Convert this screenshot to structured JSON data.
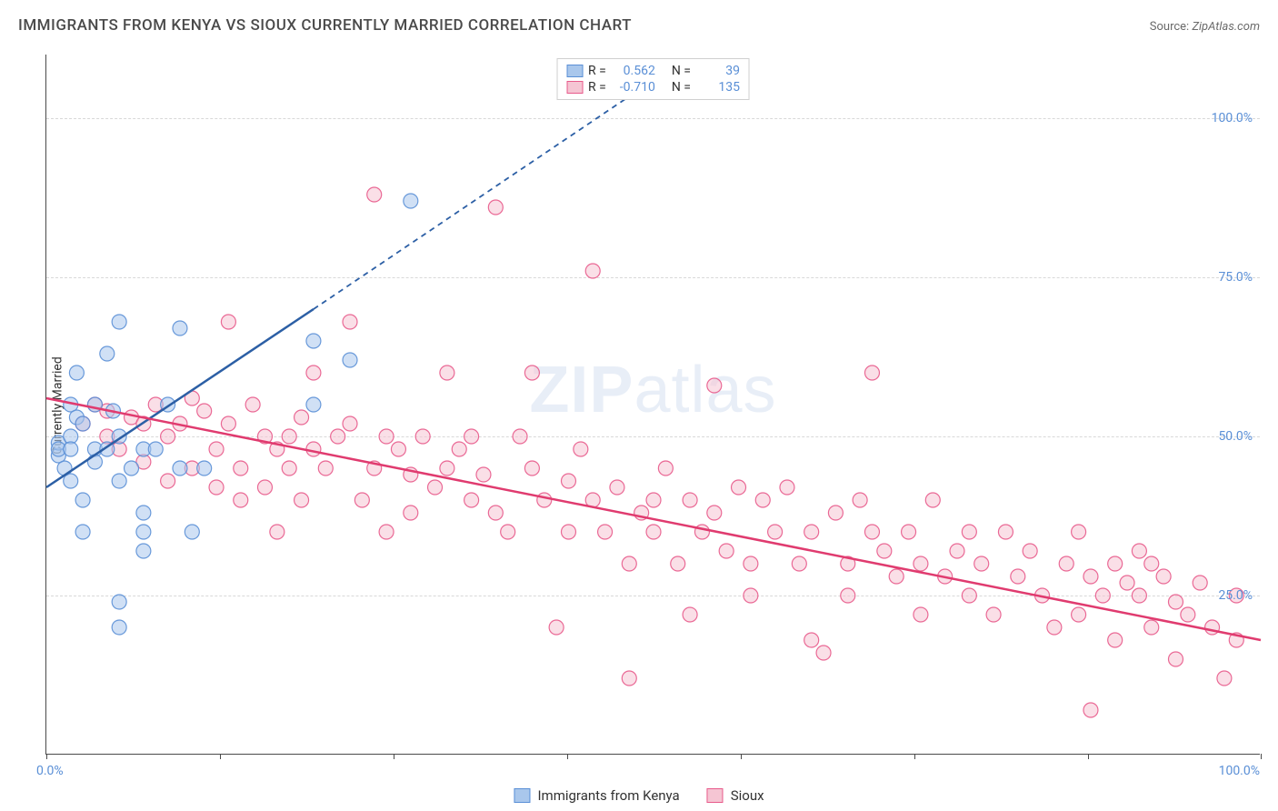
{
  "title": "IMMIGRANTS FROM KENYA VS SIOUX CURRENTLY MARRIED CORRELATION CHART",
  "source_label": "Source:",
  "source_value": "ZipAtlas.com",
  "y_label": "Currently Married",
  "watermark_bold": "ZIP",
  "watermark_light": "atlas",
  "chart": {
    "type": "scatter",
    "background_color": "#ffffff",
    "grid_color": "#d8d8d8",
    "axis_color": "#4a4a4a",
    "tick_label_color": "#5a8fd6",
    "tick_label_fontsize": 14,
    "title_color": "#4a4a4a",
    "title_fontsize": 17,
    "xlim": [
      0,
      100
    ],
    "ylim": [
      0,
      110
    ],
    "x_ticks": [
      0,
      14.3,
      28.6,
      42.9,
      57.2,
      71.5,
      85.8,
      100
    ],
    "x_tick_labels": {
      "0": "0.0%",
      "100": "100.0%"
    },
    "y_gridlines": [
      25,
      50,
      75,
      100
    ],
    "y_tick_labels": {
      "25": "25.0%",
      "50": "50.0%",
      "75": "75.0%",
      "100": "100.0%"
    },
    "marker_radius": 8,
    "marker_opacity": 0.55,
    "series": [
      {
        "name": "Immigrants from Kenya",
        "fill_color": "#a9c7ec",
        "stroke_color": "#5a8fd6",
        "trend_color": "#2c5fa5",
        "trend_width": 2.5,
        "r_value": "0.562",
        "n_value": "39",
        "trend_solid": {
          "x1": 0,
          "y1": 42,
          "x2": 22,
          "y2": 70
        },
        "trend_dashed": {
          "x1": 22,
          "y1": 70,
          "x2": 50,
          "y2": 106
        },
        "points": [
          [
            1,
            47
          ],
          [
            1,
            49
          ],
          [
            1,
            48
          ],
          [
            1.5,
            45
          ],
          [
            2,
            50
          ],
          [
            2,
            48
          ],
          [
            2,
            55
          ],
          [
            2.5,
            60
          ],
          [
            2.5,
            53
          ],
          [
            3,
            52
          ],
          [
            2,
            43
          ],
          [
            3,
            40
          ],
          [
            3,
            35
          ],
          [
            4,
            48
          ],
          [
            4,
            55
          ],
          [
            4,
            46
          ],
          [
            5,
            63
          ],
          [
            5,
            48
          ],
          [
            5.5,
            54
          ],
          [
            6,
            68
          ],
          [
            6,
            50
          ],
          [
            6,
            43
          ],
          [
            7,
            45
          ],
          [
            8,
            48
          ],
          [
            8,
            38
          ],
          [
            8,
            35
          ],
          [
            8,
            32
          ],
          [
            6,
            24
          ],
          [
            6,
            20
          ],
          [
            9,
            48
          ],
          [
            10,
            55
          ],
          [
            11,
            45
          ],
          [
            11,
            67
          ],
          [
            12,
            35
          ],
          [
            13,
            45
          ],
          [
            22,
            55
          ],
          [
            22,
            65
          ],
          [
            25,
            62
          ],
          [
            30,
            87
          ]
        ]
      },
      {
        "name": "Sioux",
        "fill_color": "#f5c5d3",
        "stroke_color": "#e85a8b",
        "trend_color": "#e03b6f",
        "trend_width": 2.5,
        "r_value": "-0.710",
        "n_value": "135",
        "trend_solid": {
          "x1": 0,
          "y1": 56,
          "x2": 100,
          "y2": 18
        },
        "trend_dashed": null,
        "points": [
          [
            3,
            52
          ],
          [
            4,
            55
          ],
          [
            5,
            50
          ],
          [
            5,
            54
          ],
          [
            6,
            48
          ],
          [
            7,
            53
          ],
          [
            8,
            46
          ],
          [
            8,
            52
          ],
          [
            9,
            55
          ],
          [
            10,
            50
          ],
          [
            10,
            43
          ],
          [
            11,
            52
          ],
          [
            12,
            56
          ],
          [
            12,
            45
          ],
          [
            13,
            54
          ],
          [
            14,
            48
          ],
          [
            14,
            42
          ],
          [
            15,
            52
          ],
          [
            15,
            68
          ],
          [
            16,
            45
          ],
          [
            16,
            40
          ],
          [
            17,
            55
          ],
          [
            18,
            50
          ],
          [
            18,
            42
          ],
          [
            19,
            48
          ],
          [
            19,
            35
          ],
          [
            20,
            50
          ],
          [
            20,
            45
          ],
          [
            21,
            53
          ],
          [
            21,
            40
          ],
          [
            22,
            48
          ],
          [
            22,
            60
          ],
          [
            23,
            45
          ],
          [
            24,
            50
          ],
          [
            25,
            52
          ],
          [
            25,
            68
          ],
          [
            26,
            40
          ],
          [
            27,
            45
          ],
          [
            27,
            88
          ],
          [
            28,
            50
          ],
          [
            28,
            35
          ],
          [
            29,
            48
          ],
          [
            30,
            44
          ],
          [
            30,
            38
          ],
          [
            31,
            50
          ],
          [
            32,
            42
          ],
          [
            33,
            60
          ],
          [
            33,
            45
          ],
          [
            34,
            48
          ],
          [
            35,
            40
          ],
          [
            35,
            50
          ],
          [
            36,
            44
          ],
          [
            37,
            86
          ],
          [
            37,
            38
          ],
          [
            38,
            35
          ],
          [
            39,
            50
          ],
          [
            40,
            45
          ],
          [
            40,
            60
          ],
          [
            41,
            40
          ],
          [
            42,
            20
          ],
          [
            43,
            43
          ],
          [
            43,
            35
          ],
          [
            44,
            48
          ],
          [
            45,
            76
          ],
          [
            45,
            40
          ],
          [
            46,
            35
          ],
          [
            47,
            42
          ],
          [
            48,
            30
          ],
          [
            48,
            12
          ],
          [
            49,
            38
          ],
          [
            50,
            35
          ],
          [
            50,
            40
          ],
          [
            51,
            45
          ],
          [
            52,
            30
          ],
          [
            53,
            40
          ],
          [
            53,
            22
          ],
          [
            54,
            35
          ],
          [
            55,
            58
          ],
          [
            55,
            38
          ],
          [
            56,
            32
          ],
          [
            57,
            42
          ],
          [
            58,
            30
          ],
          [
            58,
            25
          ],
          [
            59,
            40
          ],
          [
            60,
            35
          ],
          [
            61,
            42
          ],
          [
            62,
            30
          ],
          [
            63,
            35
          ],
          [
            63,
            18
          ],
          [
            64,
            16
          ],
          [
            65,
            38
          ],
          [
            66,
            30
          ],
          [
            66,
            25
          ],
          [
            67,
            40
          ],
          [
            68,
            60
          ],
          [
            68,
            35
          ],
          [
            69,
            32
          ],
          [
            70,
            28
          ],
          [
            71,
            35
          ],
          [
            72,
            30
          ],
          [
            72,
            22
          ],
          [
            73,
            40
          ],
          [
            74,
            28
          ],
          [
            75,
            32
          ],
          [
            76,
            35
          ],
          [
            76,
            25
          ],
          [
            77,
            30
          ],
          [
            78,
            22
          ],
          [
            79,
            35
          ],
          [
            80,
            28
          ],
          [
            81,
            32
          ],
          [
            82,
            25
          ],
          [
            83,
            20
          ],
          [
            84,
            30
          ],
          [
            85,
            35
          ],
          [
            85,
            22
          ],
          [
            86,
            28
          ],
          [
            86,
            7
          ],
          [
            87,
            25
          ],
          [
            88,
            30
          ],
          [
            88,
            18
          ],
          [
            89,
            27
          ],
          [
            90,
            32
          ],
          [
            90,
            25
          ],
          [
            91,
            30
          ],
          [
            91,
            20
          ],
          [
            92,
            28
          ],
          [
            93,
            24
          ],
          [
            93,
            15
          ],
          [
            94,
            22
          ],
          [
            95,
            27
          ],
          [
            96,
            20
          ],
          [
            97,
            12
          ],
          [
            98,
            25
          ],
          [
            98,
            18
          ]
        ]
      }
    ]
  },
  "legend_top": {
    "r_label": "R =",
    "n_label": "N ="
  },
  "legend_bottom": {
    "items": [
      "Immigrants from Kenya",
      "Sioux"
    ]
  }
}
